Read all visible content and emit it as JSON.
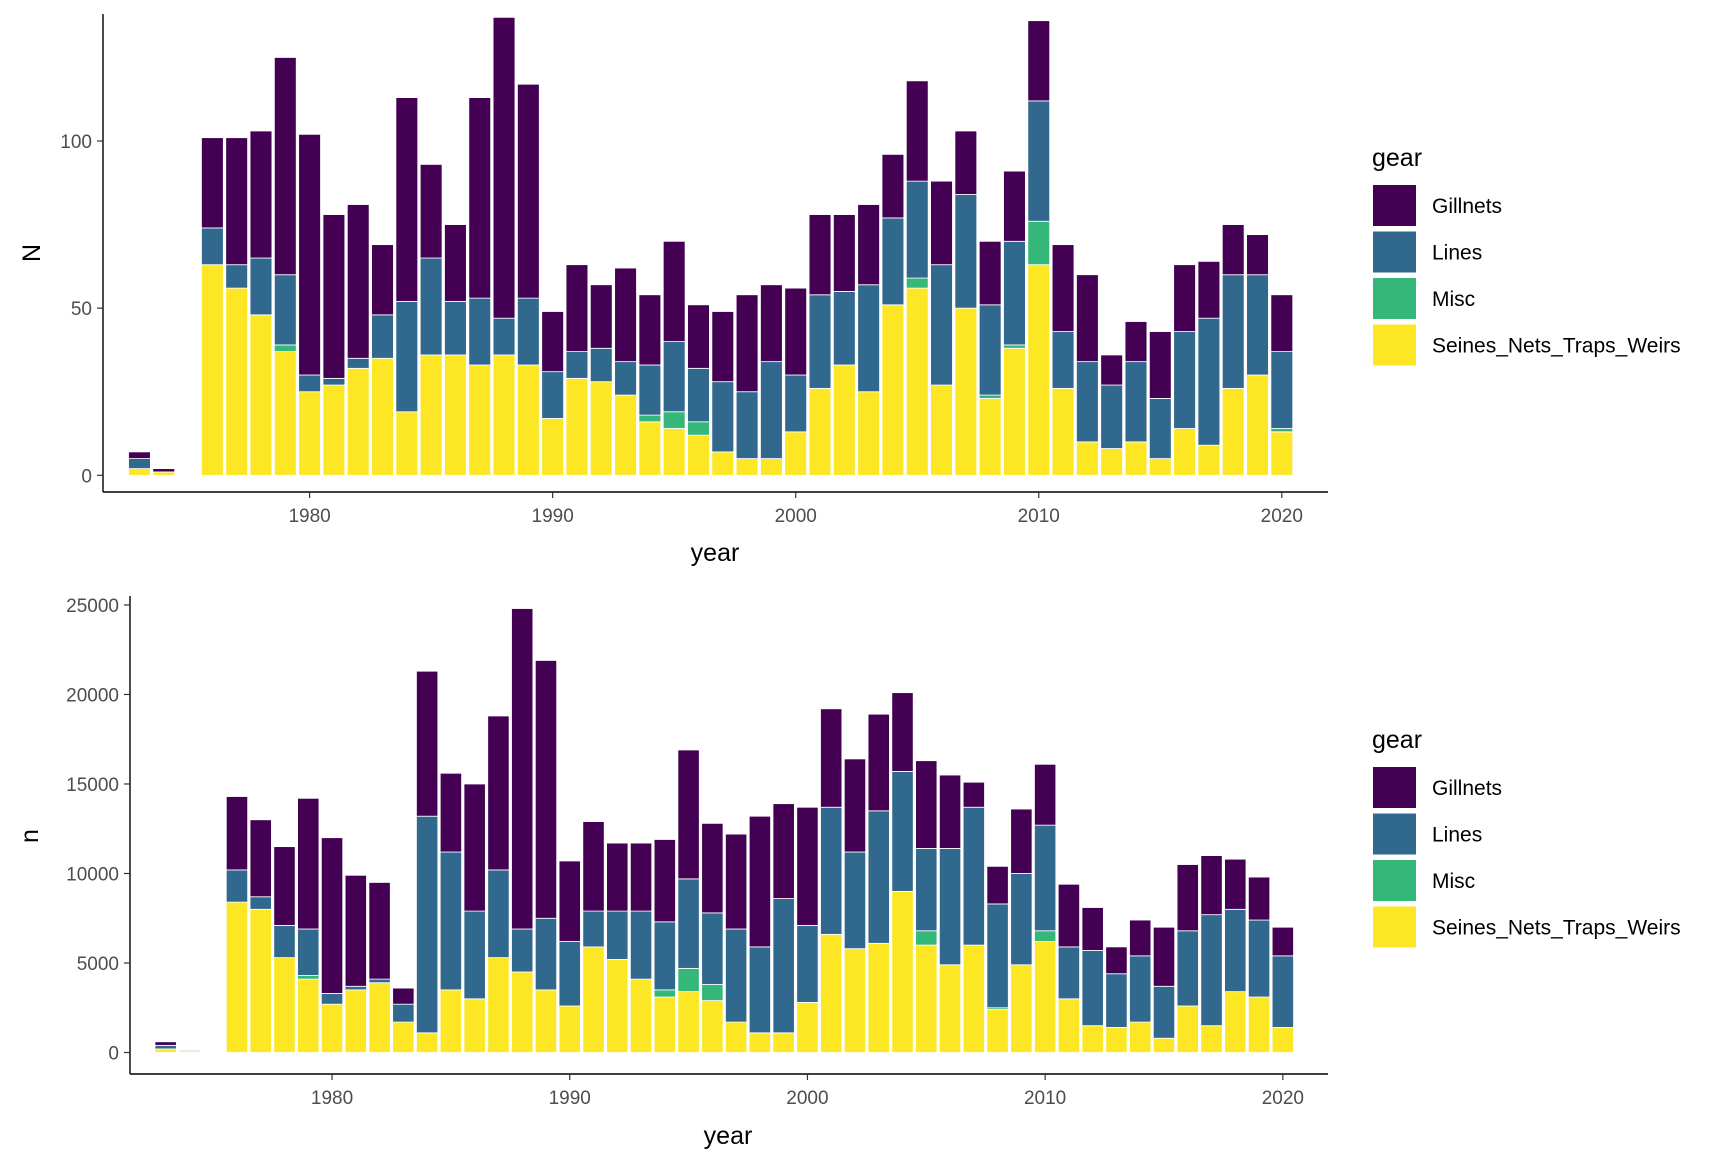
{
  "chart_data": [
    {
      "type": "bar",
      "stacked": true,
      "xlabel": "year",
      "ylabel": "N",
      "xlim": [
        1971.5,
        2021.9
      ],
      "ylim": [
        -5,
        138
      ],
      "x_ticks": [
        1980,
        1990,
        2000,
        2010,
        2020
      ],
      "y_ticks": [
        0,
        50,
        100
      ],
      "grid": false,
      "legend": {
        "title": "gear",
        "placement": "right"
      },
      "x": [
        1973,
        1974,
        1976,
        1977,
        1978,
        1979,
        1980,
        1981,
        1982,
        1983,
        1984,
        1985,
        1986,
        1987,
        1988,
        1989,
        1990,
        1991,
        1992,
        1993,
        1994,
        1995,
        1996,
        1997,
        1998,
        1999,
        2000,
        2001,
        2002,
        2003,
        2004,
        2005,
        2006,
        2007,
        2008,
        2009,
        2010,
        2011,
        2012,
        2013,
        2014,
        2015,
        2016,
        2017,
        2018,
        2019,
        2020
      ],
      "series": [
        {
          "name": "Seines_Nets_Traps_Weirs",
          "color": "#FDE725",
          "values": [
            2,
            1,
            63,
            56,
            48,
            37,
            25,
            27,
            32,
            35,
            19,
            36,
            36,
            33,
            36,
            33,
            17,
            29,
            28,
            24,
            16,
            14,
            12,
            7,
            5,
            5,
            13,
            26,
            33,
            25,
            51,
            56,
            27,
            50,
            23,
            38,
            63,
            26,
            10,
            8,
            10,
            5,
            14,
            9,
            26,
            30,
            13
          ]
        },
        {
          "name": "Misc",
          "color": "#35B779",
          "values": [
            0,
            0,
            0,
            0,
            0,
            2,
            0,
            0,
            0,
            0,
            0,
            0,
            0,
            0,
            0,
            0,
            0,
            0,
            0,
            0,
            2,
            5,
            4,
            0,
            0,
            0,
            0,
            0,
            0,
            0,
            0,
            3,
            0,
            0,
            1,
            1,
            13,
            0,
            0,
            0,
            0,
            0,
            0,
            0,
            0,
            0,
            1
          ]
        },
        {
          "name": "Lines",
          "color": "#31688E",
          "values": [
            3,
            0,
            11,
            7,
            17,
            21,
            5,
            2,
            3,
            13,
            33,
            29,
            16,
            20,
            11,
            20,
            14,
            8,
            10,
            10,
            15,
            21,
            16,
            21,
            20,
            29,
            17,
            28,
            22,
            32,
            26,
            29,
            36,
            34,
            27,
            31,
            36,
            17,
            24,
            19,
            24,
            18,
            29,
            38,
            34,
            30,
            23
          ]
        },
        {
          "name": "Gillnets",
          "color": "#440154",
          "values": [
            2,
            1,
            27,
            38,
            38,
            65,
            72,
            49,
            46,
            21,
            61,
            28,
            23,
            60,
            90,
            64,
            18,
            26,
            19,
            28,
            21,
            30,
            19,
            21,
            29,
            23,
            26,
            24,
            23,
            24,
            19,
            30,
            25,
            19,
            19,
            21,
            24,
            26,
            26,
            9,
            12,
            20,
            20,
            17,
            15,
            12,
            17
          ]
        }
      ]
    },
    {
      "type": "bar",
      "stacked": true,
      "xlabel": "year",
      "ylabel": "n",
      "xlim": [
        1971.5,
        2021.9
      ],
      "ylim": [
        -1200,
        25500
      ],
      "x_ticks": [
        1980,
        1990,
        2000,
        2010,
        2020
      ],
      "y_ticks": [
        0,
        5000,
        10000,
        15000,
        20000,
        25000
      ],
      "grid": false,
      "legend": {
        "title": "gear",
        "placement": "right"
      },
      "x": [
        1973,
        1974,
        1976,
        1977,
        1978,
        1979,
        1980,
        1981,
        1982,
        1983,
        1984,
        1985,
        1986,
        1987,
        1988,
        1989,
        1990,
        1991,
        1992,
        1993,
        1994,
        1995,
        1996,
        1997,
        1998,
        1999,
        2000,
        2001,
        2002,
        2003,
        2004,
        2005,
        2006,
        2007,
        2008,
        2009,
        2010,
        2011,
        2012,
        2013,
        2014,
        2015,
        2016,
        2017,
        2018,
        2019,
        2020
      ],
      "series": [
        {
          "name": "Seines_Nets_Traps_Weirs",
          "color": "#FDE725",
          "values": [
            200,
            80,
            8400,
            8000,
            5300,
            4100,
            2700,
            3500,
            3900,
            1700,
            1100,
            3500,
            3000,
            5300,
            4500,
            3500,
            2600,
            5900,
            5200,
            4100,
            3100,
            3400,
            2900,
            1700,
            1100,
            1100,
            2800,
            6600,
            5800,
            6100,
            9000,
            6000,
            4900,
            6000,
            2400,
            4900,
            6200,
            3000,
            1500,
            1400,
            1700,
            800,
            2600,
            1500,
            3400,
            3100,
            1400
          ]
        },
        {
          "name": "Misc",
          "color": "#35B779",
          "values": [
            0,
            0,
            0,
            0,
            0,
            200,
            0,
            0,
            0,
            0,
            0,
            0,
            0,
            0,
            0,
            0,
            0,
            0,
            0,
            0,
            400,
            1300,
            900,
            0,
            0,
            0,
            0,
            0,
            0,
            0,
            0,
            800,
            0,
            0,
            100,
            0,
            600,
            0,
            0,
            0,
            0,
            0,
            0,
            0,
            0,
            0,
            0
          ]
        },
        {
          "name": "Lines",
          "color": "#31688E",
          "values": [
            200,
            0,
            1800,
            700,
            1800,
            2600,
            600,
            200,
            200,
            1000,
            12100,
            7700,
            4900,
            4900,
            2400,
            4000,
            3600,
            2000,
            2700,
            3800,
            3800,
            5000,
            4000,
            5200,
            4800,
            7500,
            4300,
            7100,
            5400,
            7400,
            6700,
            4600,
            6500,
            7700,
            5800,
            5100,
            5900,
            2900,
            4200,
            3000,
            3700,
            2900,
            4200,
            6200,
            4600,
            4300,
            4000
          ]
        },
        {
          "name": "Gillnets",
          "color": "#440154",
          "values": [
            200,
            50,
            4100,
            4300,
            4400,
            7300,
            8700,
            6200,
            5400,
            900,
            8100,
            4400,
            7100,
            8600,
            17900,
            14400,
            4500,
            5000,
            3800,
            3800,
            4600,
            7200,
            5000,
            5300,
            7300,
            5300,
            6600,
            5500,
            5200,
            5400,
            4400,
            4900,
            4100,
            1400,
            2100,
            3600,
            3400,
            3500,
            2400,
            1500,
            2000,
            3300,
            3700,
            3300,
            2800,
            2400,
            1600
          ]
        }
      ]
    }
  ]
}
